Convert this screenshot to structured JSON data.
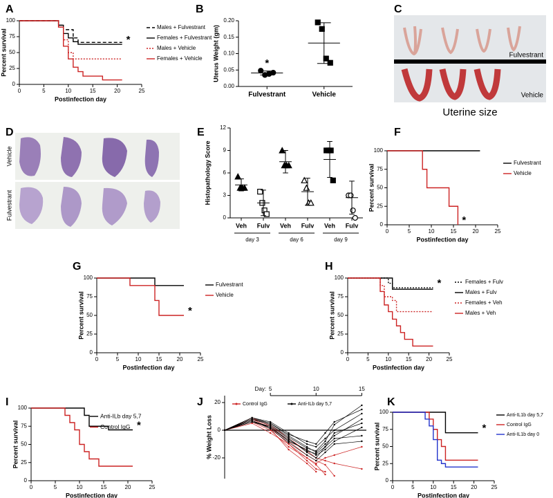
{
  "chart_data": [
    {
      "panel": "A",
      "type": "line",
      "step": true,
      "xlabel": "Postinfection day",
      "ylabel": "Percent survival",
      "x": [
        0,
        7,
        8,
        9,
        10,
        11,
        12,
        13,
        17,
        21
      ],
      "xlim": [
        0,
        25
      ],
      "xticks": [
        0,
        5,
        10,
        15,
        20,
        25
      ],
      "ylim": [
        0,
        100
      ],
      "yticks": [
        0,
        25,
        50,
        75,
        100
      ],
      "legend": "right",
      "series": [
        {
          "name": "Males + Fulvestrant",
          "color": "#000000",
          "dash": "dashed",
          "values": [
            100,
            100,
            93,
            86,
            86,
            73,
            66,
            66,
            66,
            66
          ]
        },
        {
          "name": "Females + Fulvestrant",
          "color": "#000000",
          "dash": "solid",
          "values": [
            100,
            100,
            93,
            80,
            73,
            67,
            63,
            63,
            63,
            63
          ],
          "annotation": "*"
        },
        {
          "name": "Males + Vehicle",
          "color": "#cc2222",
          "dash": "dotted",
          "values": [
            100,
            100,
            90,
            70,
            50,
            40,
            40,
            40,
            40,
            40
          ]
        },
        {
          "name": "Females + Vehicle",
          "color": "#cc2222",
          "dash": "solid",
          "values": [
            100,
            100,
            90,
            60,
            40,
            27,
            20,
            13,
            7,
            7
          ]
        }
      ]
    },
    {
      "panel": "B",
      "type": "strip",
      "ylabel": "Uterus Weight (gm)",
      "categories": [
        "Fulvestrant",
        "Vehicle"
      ],
      "markers": [
        "circle",
        "square"
      ],
      "color": "#000000",
      "values": [
        [
          0.048,
          0.035,
          0.038,
          0.042
        ],
        [
          0.195,
          0.175,
          0.085,
          0.072
        ]
      ],
      "means": [
        0.041,
        0.132
      ],
      "sds": [
        0.006,
        0.062
      ],
      "stars": [
        "*",
        null
      ],
      "ylim": [
        0,
        0.2
      ],
      "yticks": [
        {
          "value": 0,
          "label": "0.00"
        },
        {
          "value": 0.05,
          "label": "0.05"
        },
        {
          "value": 0.1,
          "label": "0.10"
        },
        {
          "value": 0.15,
          "label": "0.15"
        },
        {
          "value": 0.2,
          "label": "0.20"
        }
      ]
    },
    {
      "panel": "E",
      "type": "strip",
      "ylabel": "Histopathology Score",
      "categories": [
        "Veh",
        "Fulv",
        "Veh",
        "Fulv",
        "Veh",
        "Fulv"
      ],
      "groups": [
        "day 3",
        "day 6",
        "day 9"
      ],
      "color": "#000000",
      "markers": [
        "triangle",
        "square-open",
        "triangle",
        "triangle-open",
        "square",
        "circle-open"
      ],
      "values": [
        [
          5.5,
          4,
          4,
          4
        ],
        [
          3.5,
          2,
          1,
          0.5
        ],
        [
          9,
          7,
          7,
          7
        ],
        [
          5,
          4,
          2,
          2
        ],
        [
          9,
          9,
          9,
          5
        ],
        [
          3,
          3,
          1,
          0
        ]
      ],
      "means": [
        4.4,
        2,
        7.5,
        3.5,
        7.8,
        2.7
      ],
      "sds": [
        0.8,
        1.7,
        1.5,
        1.8,
        2.4,
        2.2
      ],
      "ylim": [
        0,
        12
      ],
      "yticks": [
        0,
        3,
        6,
        9,
        12
      ]
    },
    {
      "panel": "F",
      "type": "line",
      "step": true,
      "xlabel": "Postinfection day",
      "ylabel": "Percent survival",
      "x": [
        0,
        8,
        9,
        10,
        14,
        16,
        21
      ],
      "xlim": [
        0,
        25
      ],
      "xticks": [
        0,
        5,
        10,
        15,
        20,
        25
      ],
      "ylim": [
        0,
        100
      ],
      "yticks": [
        0,
        25,
        50,
        75,
        100
      ],
      "legend": "right",
      "series": [
        {
          "name": "Fulvestrant",
          "color": "#000000",
          "dash": "solid",
          "values": [
            100,
            100,
            100,
            100,
            100,
            100,
            100
          ]
        },
        {
          "name": "Vehicle",
          "color": "#cc2222",
          "dash": "solid",
          "values": [
            100,
            75,
            50,
            50,
            25,
            0,
            null
          ],
          "annotation": "*"
        }
      ]
    },
    {
      "panel": "G",
      "type": "line",
      "step": true,
      "xlabel": "Postinfection day",
      "ylabel": "Percent survival",
      "x": [
        0,
        8,
        14,
        15,
        21
      ],
      "xlim": [
        0,
        25
      ],
      "xticks": [
        0,
        5,
        10,
        15,
        20,
        25
      ],
      "ylim": [
        0,
        100
      ],
      "yticks": [
        0,
        25,
        50,
        75,
        100
      ],
      "legend": "right",
      "series": [
        {
          "name": "Fulvestrant",
          "color": "#000000",
          "dash": "solid",
          "values": [
            100,
            100,
            90,
            90,
            90
          ]
        },
        {
          "name": "Vehicle",
          "color": "#cc2222",
          "dash": "solid",
          "values": [
            100,
            90,
            70,
            50,
            50
          ],
          "annotation": "*"
        }
      ]
    },
    {
      "panel": "H",
      "type": "line",
      "step": true,
      "xlabel": "Postinfection day",
      "ylabel": "Percent survival",
      "x": [
        0,
        8,
        9,
        10,
        11,
        12,
        13,
        14,
        16,
        21
      ],
      "xlim": [
        0,
        25
      ],
      "xticks": [
        0,
        5,
        10,
        15,
        20,
        25
      ],
      "ylim": [
        0,
        100
      ],
      "yticks": [
        0,
        25,
        50,
        75,
        100
      ],
      "legend": "right",
      "series": [
        {
          "name": "Females + Fulv",
          "color": "#000000",
          "dash": "dotted",
          "values": [
            100,
            100,
            100,
            93,
            87,
            87,
            87,
            87,
            87,
            87
          ],
          "annotation": "*"
        },
        {
          "name": "Males + Fulv",
          "color": "#000000",
          "dash": "solid",
          "values": [
            100,
            100,
            100,
            100,
            85,
            85,
            85,
            85,
            85,
            85
          ]
        },
        {
          "name": "Females + Veh",
          "color": "#cc2222",
          "dash": "dotted",
          "values": [
            100,
            90,
            75,
            75,
            70,
            55,
            55,
            55,
            55,
            55
          ]
        },
        {
          "name": "Males + Veh",
          "color": "#cc2222",
          "dash": "solid",
          "values": [
            100,
            82,
            64,
            55,
            45,
            36,
            27,
            18,
            9,
            9
          ]
        }
      ]
    },
    {
      "panel": "I",
      "type": "line",
      "step": true,
      "xlabel": "Postinfection day",
      "ylabel": "Percent survival",
      "x": [
        0,
        7,
        8,
        9,
        10,
        11,
        12,
        14,
        16,
        21
      ],
      "xlim": [
        0,
        25
      ],
      "xticks": [
        0,
        5,
        10,
        15,
        20,
        25
      ],
      "ylim": [
        0,
        100
      ],
      "yticks": [
        0,
        25,
        50,
        75,
        100
      ],
      "legend": "inside",
      "series": [
        {
          "name": "Anti-ILb day 5,7",
          "color": "#000000",
          "dash": "solid",
          "values": [
            100,
            100,
            100,
            100,
            100,
            90,
            75,
            75,
            70,
            70
          ],
          "annotation": "*"
        },
        {
          "name": "Control IgG",
          "color": "#cc2222",
          "dash": "solid",
          "values": [
            100,
            90,
            80,
            70,
            50,
            40,
            30,
            20,
            20,
            20
          ]
        }
      ]
    },
    {
      "panel": "J",
      "type": "line",
      "step": false,
      "xaxis": "top",
      "xlabel": "Day:",
      "ylabel": "% Weight Loss",
      "x": [
        0,
        3,
        5,
        7,
        9,
        10,
        11,
        12,
        15
      ],
      "xlim": [
        0,
        15.5
      ],
      "xticks": [
        5,
        10,
        15
      ],
      "ylim": [
        -35,
        25
      ],
      "yticks": [
        -20,
        0,
        20
      ],
      "refline": 0,
      "legend": "inline",
      "series": [
        {
          "name": "Control IgG",
          "color": "#cc2222",
          "dash": "solid",
          "lines": [
            [
              0,
              8,
              2,
              -10,
              -22,
              -28,
              -30,
              null,
              null
            ],
            [
              0,
              6,
              0,
              -12,
              -20,
              -25,
              -32,
              null,
              null
            ],
            [
              0,
              9,
              3,
              -8,
              -18,
              -22,
              -25,
              -33,
              null
            ],
            [
              0,
              7,
              1,
              -14,
              -24,
              -30,
              null,
              null,
              null
            ],
            [
              0,
              5,
              -2,
              -10,
              -20,
              -24,
              -20,
              -18,
              -12
            ],
            [
              0,
              8,
              4,
              -6,
              -15,
              -20,
              -22,
              -24,
              -28
            ]
          ]
        },
        {
          "name": "Anti-ILb day 5,7",
          "color": "#000000",
          "dash": "solid",
          "lines": [
            [
              0,
              8,
              5,
              -4,
              -12,
              -16,
              -10,
              -4,
              8
            ],
            [
              0,
              7,
              2,
              -8,
              -14,
              -18,
              -14,
              -8,
              2
            ],
            [
              0,
              9,
              6,
              -2,
              -10,
              -12,
              -6,
              0,
              12
            ],
            [
              0,
              6,
              3,
              -6,
              -16,
              -20,
              -12,
              -6,
              -4
            ],
            [
              0,
              8,
              4,
              -5,
              -13,
              -15,
              -8,
              4,
              18
            ],
            [
              0,
              7,
              1,
              -9,
              -18,
              -22,
              -16,
              -10,
              -8
            ],
            [
              0,
              9,
              5,
              -3,
              -8,
              -10,
              -2,
              6,
              15
            ],
            [
              0,
              6,
              2,
              -7,
              -15,
              -17,
              -12,
              -2,
              5
            ]
          ]
        }
      ]
    },
    {
      "panel": "K",
      "type": "line",
      "step": true,
      "xlabel": "Postinfection day",
      "ylabel": "Percent survival",
      "x": [
        0,
        8,
        9,
        10,
        11,
        12,
        13,
        21
      ],
      "xlim": [
        0,
        25
      ],
      "xticks": [
        0,
        5,
        10,
        15,
        20,
        25
      ],
      "ylim": [
        0,
        100
      ],
      "yticks": [
        0,
        25,
        50,
        75,
        100
      ],
      "legend": "right",
      "series": [
        {
          "name": "Anti-IL1b day 5,7",
          "color": "#000000",
          "dash": "solid",
          "values": [
            100,
            100,
            100,
            100,
            100,
            100,
            70,
            70
          ],
          "annotation": "*"
        },
        {
          "name": "Control IgG",
          "color": "#cc2222",
          "dash": "solid",
          "values": [
            100,
            100,
            90,
            75,
            60,
            50,
            30,
            30
          ]
        },
        {
          "name": "Anti-IL1b day 0",
          "color": "#2233cc",
          "dash": "solid",
          "values": [
            100,
            90,
            80,
            60,
            30,
            25,
            20,
            20
          ]
        }
      ]
    }
  ],
  "images": [
    {
      "panel": "C",
      "labels": [
        "Fulvestrant",
        "Vehicle"
      ],
      "caption": "Uterine size"
    },
    {
      "panel": "D",
      "labels": [
        "Vehicle",
        "Fulvestrant"
      ]
    }
  ]
}
